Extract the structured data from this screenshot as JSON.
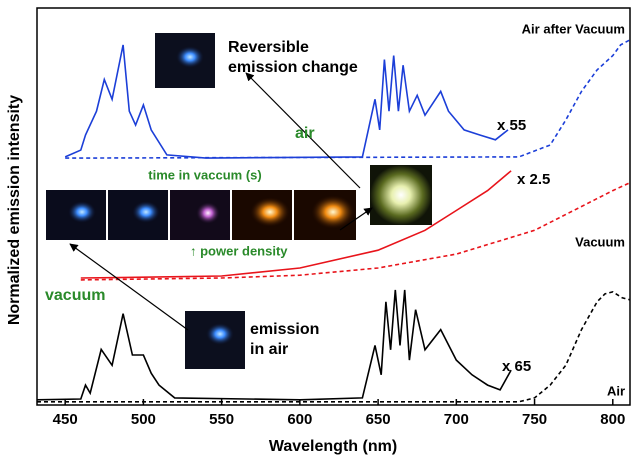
{
  "chart_data": {
    "type": "line",
    "x_label": "Wavelength (nm)",
    "y_label": "Normalized emission intensity",
    "xlim": [
      432,
      811
    ],
    "xticks": [
      450,
      500,
      550,
      600,
      650,
      700,
      750,
      800
    ],
    "ylim": [
      0,
      100
    ],
    "series": [
      {
        "color": "#000000",
        "dashed": false,
        "x": [
          432,
          460,
          463,
          466,
          473,
          480,
          487,
          493,
          500,
          505,
          510,
          520,
          600,
          640,
          648,
          652,
          655,
          658,
          661,
          664,
          667,
          670,
          674,
          680,
          690,
          700,
          710,
          720,
          728,
          735
        ],
        "values": [
          1.3,
          1.5,
          5,
          3,
          14,
          10,
          23,
          12.6,
          12.6,
          8,
          5,
          1.8,
          1.3,
          1.8,
          15,
          7.6,
          26,
          13.9,
          29,
          15,
          29,
          11.3,
          24,
          13.9,
          19,
          11.3,
          7.6,
          5,
          3.8,
          8.8
        ]
      },
      {
        "color": "#000000",
        "dashed": true,
        "x": [
          432,
          740,
          750,
          760,
          770,
          780,
          790,
          795,
          800,
          806,
          811
        ],
        "values": [
          0.8,
          0.8,
          1.8,
          5,
          10,
          19,
          26,
          28,
          28.5,
          27,
          26.5
        ]
      },
      {
        "color": "#e8141b",
        "dashed": false,
        "x": [
          460,
          500,
          550,
          600,
          650,
          680,
          700,
          720,
          735
        ],
        "values": [
          32,
          32.2,
          32.5,
          34.5,
          39,
          44,
          49,
          54,
          59
        ]
      },
      {
        "color": "#e8141b",
        "dashed": true,
        "x": [
          460,
          550,
          600,
          650,
          700,
          750,
          780,
          800,
          811
        ],
        "values": [
          31.5,
          32,
          32.7,
          34.5,
          38,
          44,
          50,
          54,
          56
        ]
      },
      {
        "color": "#1c3fd8",
        "dashed": false,
        "x": [
          450,
          460,
          463,
          470,
          475,
          480,
          487,
          491,
          495,
          500,
          505,
          515,
          540,
          640,
          648,
          651,
          654,
          657,
          660,
          663,
          666,
          670,
          675,
          680,
          690,
          695,
          705,
          715,
          725,
          733
        ],
        "values": [
          62.5,
          64.2,
          68,
          74,
          82,
          77,
          90.7,
          74,
          70.5,
          75.6,
          69.3,
          63,
          62.2,
          62.5,
          77,
          69.3,
          87,
          74,
          88,
          74,
          85.6,
          74,
          78,
          73,
          79,
          74,
          69.3,
          68,
          66.8,
          69.3
        ]
      },
      {
        "color": "#1c3fd8",
        "dashed": true,
        "x": [
          450,
          740,
          760,
          770,
          780,
          790,
          800,
          805,
          811
        ],
        "values": [
          62.2,
          62.5,
          65.5,
          71.8,
          79,
          84.4,
          88,
          90.7,
          92
        ]
      }
    ],
    "annotations": [
      {
        "lines": [
          "Air after Vacuum"
        ],
        "color": "#000000"
      },
      {
        "lines": [
          "x 55"
        ],
        "color": "#000000"
      },
      {
        "lines": [
          "air"
        ],
        "color": "#2a8a2a"
      },
      {
        "lines": [
          "Reversible",
          "emission change"
        ],
        "color": "#000000"
      },
      {
        "lines": [
          "time in vaccum (s)"
        ],
        "color": "#2a8a2a"
      },
      {
        "lines": [
          "x 2.5"
        ],
        "color": "#000000"
      },
      {
        "lines": [
          "↑ power density"
        ],
        "color": "#2a8a2a"
      },
      {
        "lines": [
          "Vacuum"
        ],
        "color": "#000000"
      },
      {
        "lines": [
          "vacuum"
        ],
        "color": "#2a8a2a"
      },
      {
        "lines": [
          "emission",
          "in air"
        ],
        "color": "#000000"
      },
      {
        "lines": [
          "x 65"
        ],
        "color": "#000000"
      },
      {
        "lines": [
          "Air"
        ],
        "color": "#000000"
      }
    ]
  }
}
